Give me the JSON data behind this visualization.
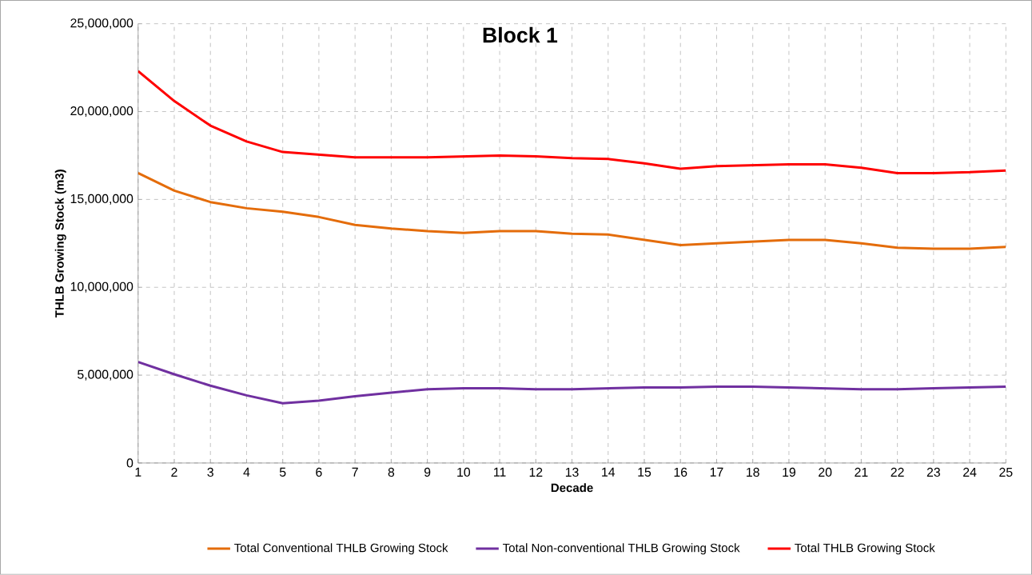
{
  "chart_data": {
    "type": "line",
    "title": "Block 1",
    "xlabel": "Decade",
    "ylabel": "THLB Growing Stock (m3)",
    "x": [
      1,
      2,
      3,
      4,
      5,
      6,
      7,
      8,
      9,
      10,
      11,
      12,
      13,
      14,
      15,
      16,
      17,
      18,
      19,
      20,
      21,
      22,
      23,
      24,
      25
    ],
    "series": [
      {
        "name": "Total Conventional THLB Growing Stock",
        "color": "#e46c0a",
        "values": [
          16500000,
          15500000,
          14850000,
          14500000,
          14300000,
          14000000,
          13550000,
          13350000,
          13200000,
          13100000,
          13200000,
          13200000,
          13050000,
          13000000,
          12700000,
          12400000,
          12500000,
          12600000,
          12700000,
          12700000,
          12500000,
          12250000,
          12200000,
          12200000,
          12300000
        ]
      },
      {
        "name": "Total Non-conventional THLB Growing Stock",
        "color": "#7030a0",
        "values": [
          5750000,
          5050000,
          4400000,
          3850000,
          3400000,
          3550000,
          3800000,
          4000000,
          4200000,
          4250000,
          4250000,
          4200000,
          4200000,
          4250000,
          4300000,
          4300000,
          4350000,
          4350000,
          4300000,
          4250000,
          4200000,
          4200000,
          4250000,
          4300000,
          4350000
        ]
      },
      {
        "name": "Total THLB Growing Stock",
        "color": "#ff0000",
        "values": [
          22300000,
          20600000,
          19200000,
          18300000,
          17700000,
          17550000,
          17400000,
          17400000,
          17400000,
          17450000,
          17500000,
          17450000,
          17350000,
          17300000,
          17050000,
          16750000,
          16900000,
          16950000,
          17000000,
          17000000,
          16800000,
          16500000,
          16500000,
          16550000,
          16650000
        ]
      }
    ],
    "xlim": [
      1,
      25
    ],
    "xticks": [
      1,
      2,
      3,
      4,
      5,
      6,
      7,
      8,
      9,
      10,
      11,
      12,
      13,
      14,
      15,
      16,
      17,
      18,
      19,
      20,
      21,
      22,
      23,
      24,
      25
    ],
    "ylim": [
      0,
      25000000
    ],
    "yticks": [
      0,
      {
        "value": 5000000,
        "label": "5,000,000"
      },
      {
        "value": 10000000,
        "label": "10,000,000"
      },
      {
        "value": 15000000,
        "label": "15,000,000"
      },
      {
        "value": 20000000,
        "label": "20,000,000"
      },
      {
        "value": 25000000,
        "label": "25,000,000"
      }
    ],
    "grid": true,
    "legend": "bottom"
  }
}
